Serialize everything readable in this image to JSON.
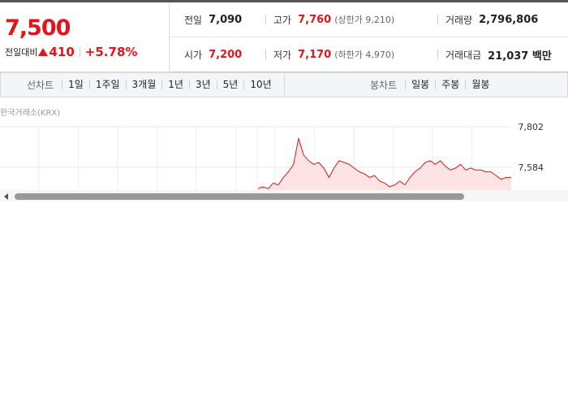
{
  "price": {
    "current": "7,500",
    "change_label": "전일대비",
    "change": "410",
    "change_rate": "+5.78%"
  },
  "summary": [
    [
      {
        "label": "전일",
        "value": "7,090"
      },
      {
        "label": "고가",
        "value": "7,760",
        "note": "(상한가 9,210)"
      },
      {
        "label": "거래량",
        "value": "2,796,806"
      }
    ],
    [
      {
        "label": "시가",
        "value": "7,200"
      },
      {
        "label": "저가",
        "value": "7,170",
        "note": "(하한가 4,970)"
      },
      {
        "label": "거래대금",
        "value": "21,037 백만"
      }
    ]
  ],
  "tabs": {
    "line_label": "선차트",
    "line": [
      "1일",
      "1주일",
      "3개월",
      "1년",
      "3년",
      "5년",
      "10년"
    ],
    "candle_label": "봉차트",
    "candle": [
      "일봉",
      "주봉",
      "월봉"
    ]
  },
  "chart": {
    "type": "line",
    "source": "한국거래소(KRX)",
    "color": "#e0161c",
    "fill": "#fde3e4",
    "ylim": [
      7462,
      7802
    ],
    "yticks": [
      {
        "value": 7802,
        "label": "7,802"
      },
      {
        "value": 7584,
        "label": "7,584"
      }
    ],
    "values": [
      7470,
      7480,
      7470,
      7500,
      7490,
      7530,
      7560,
      7600,
      7740,
      7650,
      7620,
      7600,
      7610,
      7580,
      7530,
      7580,
      7620,
      7610,
      7600,
      7580,
      7560,
      7550,
      7530,
      7540,
      7510,
      7500,
      7480,
      7490,
      7510,
      7490,
      7530,
      7560,
      7580,
      7610,
      7620,
      7600,
      7620,
      7590,
      7570,
      7580,
      7600,
      7570,
      7580,
      7570,
      7570,
      7560,
      7560,
      7540,
      7520,
      7530,
      7530
    ]
  }
}
